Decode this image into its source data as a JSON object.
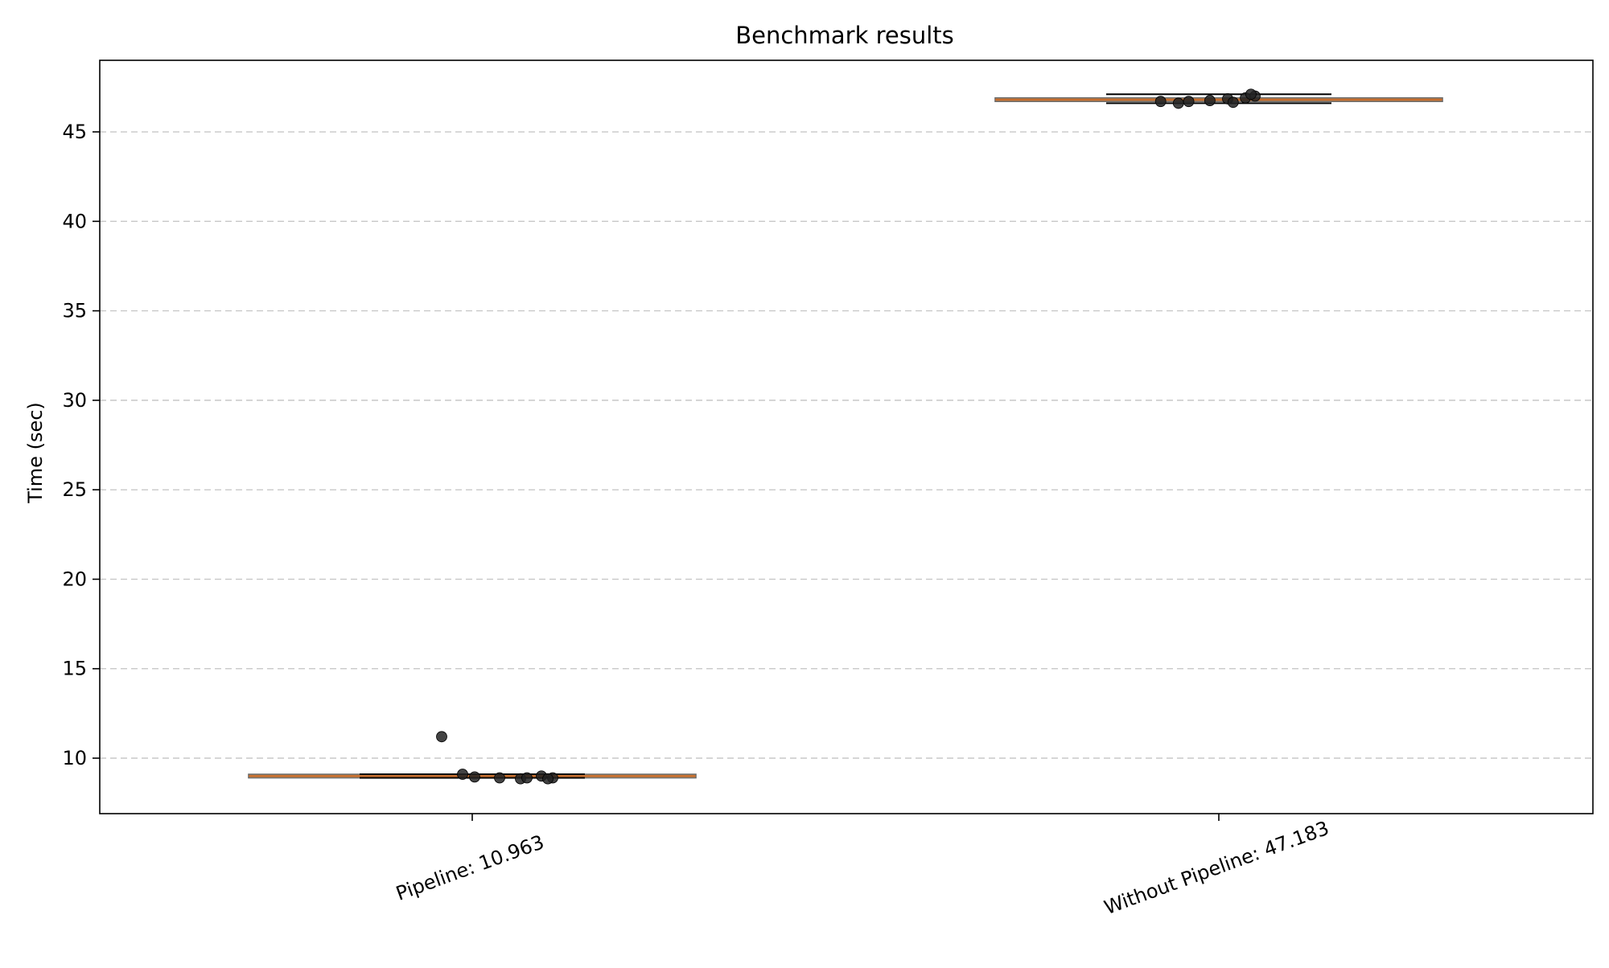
{
  "chart_data": {
    "type": "box",
    "title": "Benchmark results",
    "xlabel": "",
    "ylabel": "Time (sec)",
    "ylim": [
      6.9,
      49.0
    ],
    "yticks": [
      10,
      15,
      20,
      25,
      30,
      35,
      40,
      45
    ],
    "grid": "horizontal-dashed",
    "categories": [
      "Pipeline: 10.963",
      "Without Pipeline: 47.183"
    ],
    "boxes": [
      {
        "label": "Pipeline: 10.963",
        "q1": 8.9,
        "median": 9.0,
        "q3": 9.1,
        "whisker_low": 8.9,
        "whisker_high": 9.1
      },
      {
        "label": "Without Pipeline: 47.183",
        "q1": 46.7,
        "median": 46.8,
        "q3": 46.9,
        "whisker_low": 46.6,
        "whisker_high": 47.1
      }
    ],
    "points": [
      {
        "category": "Pipeline: 10.963",
        "values": [
          11.2,
          9.1,
          8.9,
          8.85,
          9.0,
          8.9,
          8.85,
          8.95,
          8.9
        ]
      },
      {
        "category": "Without Pipeline: 47.183",
        "values": [
          46.7,
          46.6,
          46.75,
          46.85,
          46.9,
          47.0,
          47.1,
          46.7,
          46.65
        ]
      }
    ],
    "colors": {
      "box_fill": "#E0893A",
      "box_edge": "#6b6b6b",
      "whisker_color": "#000000",
      "point_color": "#222222",
      "grid_color": "#c8c8c8",
      "axis_color": "#000000"
    }
  }
}
